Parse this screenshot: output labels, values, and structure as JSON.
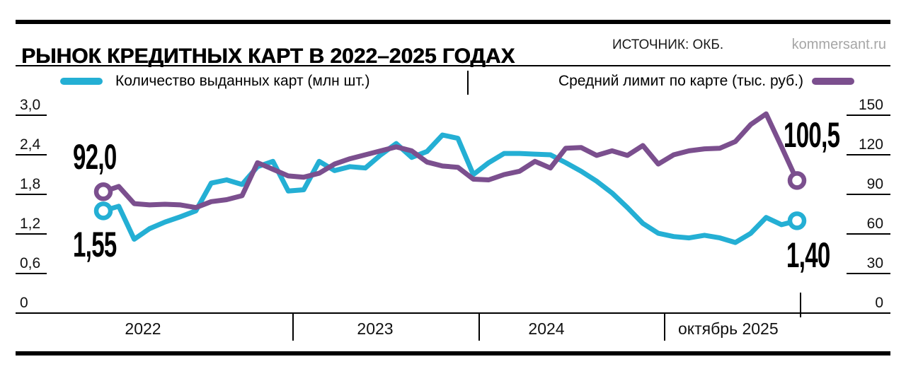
{
  "header": {
    "title": "РЫНОК КРЕДИТНЫХ КАРТ В 2022–2025 ГОДАХ",
    "source": "ИСТОЧНИК: ОКБ.",
    "site": "kommersant.ru"
  },
  "legend": {
    "cards_label": "Количество выданных карт (млн шт.)",
    "limit_label": "Средний лимит по карте (тыс. руб.)"
  },
  "colors": {
    "cards": "#24afd4",
    "limit": "#7b4f8e",
    "axis": "#000000",
    "muted_text": "#a6a6a6"
  },
  "annotations": {
    "start_limit": "92,0",
    "start_cards": "1,55",
    "end_limit": "100,5",
    "end_cards": "1,40"
  },
  "chart_data": {
    "type": "line",
    "title": "Рынок кредитных карт в 2022–2025 годах",
    "x_unit": "month",
    "x_start": "2022-01",
    "x_end": "2025-10",
    "n_points": 46,
    "grid": false,
    "legend_position": "top",
    "x_axis_sections": [
      "2022",
      "2023",
      "2024",
      "октябрь 2025"
    ],
    "left_axis": {
      "label": "Количество выданных карт (млн шт.)",
      "tick_labels": [
        "0",
        "0,6",
        "1,2",
        "1,8",
        "2,4",
        "3,0"
      ],
      "tick_values": [
        0,
        0.6,
        1.2,
        1.8,
        2.4,
        3.0
      ],
      "range": [
        0,
        3.0
      ]
    },
    "right_axis": {
      "label": "Средний лимит по карте (тыс. руб.)",
      "tick_labels": [
        "0",
        "30",
        "60",
        "90",
        "120",
        "150"
      ],
      "tick_values": [
        0,
        30,
        60,
        90,
        120,
        150
      ],
      "range": [
        0,
        150
      ]
    },
    "series": [
      {
        "name": "Количество выданных карт (млн шт.)",
        "axis": "left",
        "color": "#24afd4",
        "first_value": 1.55,
        "last_value": 1.4,
        "values": [
          1.55,
          1.62,
          1.12,
          1.28,
          1.38,
          1.46,
          1.55,
          1.97,
          2.02,
          1.95,
          2.22,
          2.3,
          1.85,
          1.87,
          2.3,
          2.16,
          2.22,
          2.2,
          2.4,
          2.57,
          2.36,
          2.45,
          2.7,
          2.65,
          2.1,
          2.28,
          2.42,
          2.42,
          2.41,
          2.4,
          2.28,
          2.15,
          2.0,
          1.82,
          1.6,
          1.36,
          1.21,
          1.16,
          1.14,
          1.18,
          1.14,
          1.07,
          1.21,
          1.45,
          1.34,
          1.4
        ]
      },
      {
        "name": "Средний лимит по карте (тыс. руб.)",
        "axis": "right",
        "color": "#7b4f8e",
        "first_value": 92.0,
        "last_value": 100.5,
        "values": [
          92.0,
          96.0,
          83.0,
          82.0,
          82.5,
          82.0,
          80.0,
          84.5,
          86.0,
          89.0,
          114.0,
          109.0,
          104.0,
          103.0,
          106.0,
          113.0,
          117.0,
          120.0,
          123.0,
          126.0,
          123.0,
          114.5,
          111.5,
          110.5,
          101.5,
          101.0,
          105.0,
          107.5,
          115.0,
          110.0,
          125.0,
          125.5,
          119.5,
          123.0,
          119.5,
          127.0,
          113.0,
          120.0,
          123.0,
          124.5,
          125.0,
          130.0,
          143.0,
          151.0,
          126.0,
          100.5
        ]
      }
    ]
  }
}
